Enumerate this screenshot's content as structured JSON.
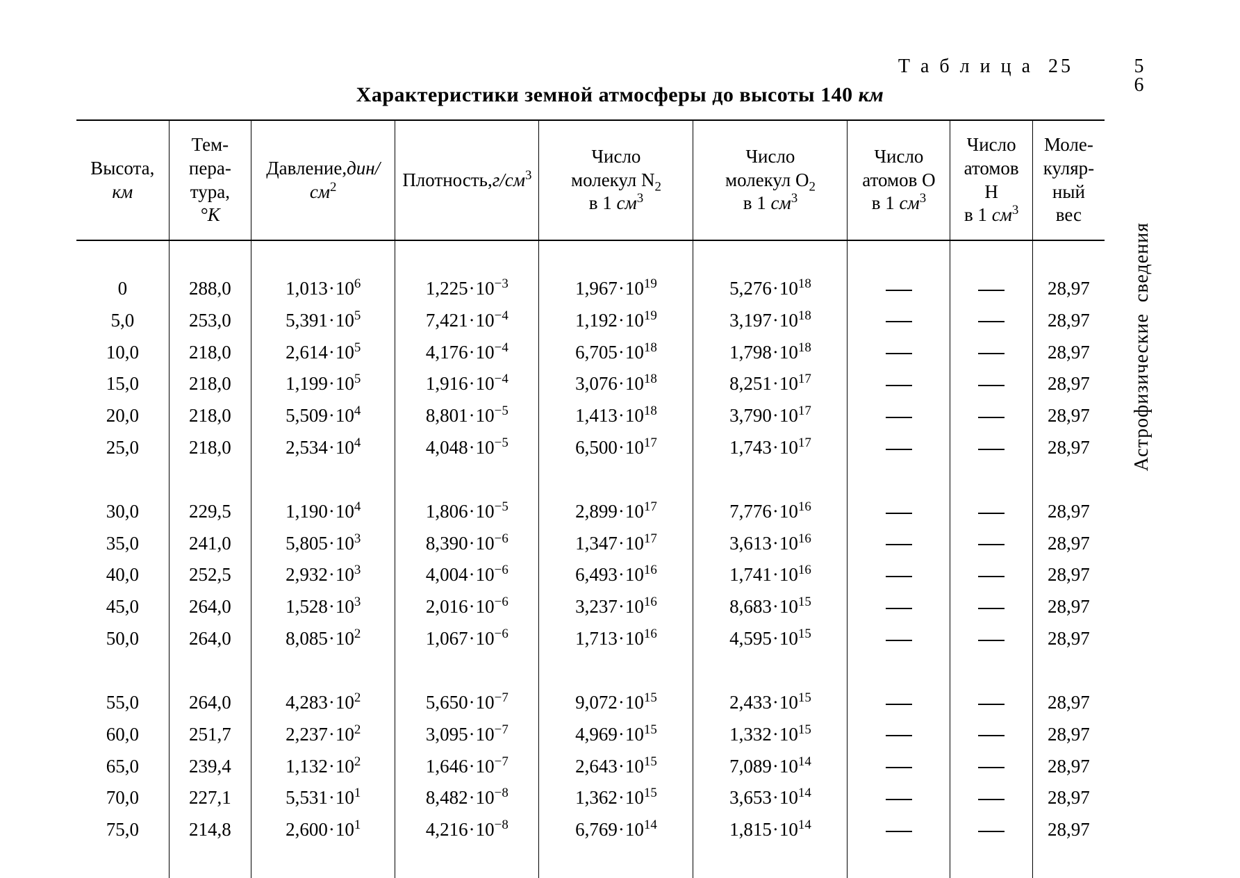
{
  "page_number": "56",
  "table_label": "Т а б л и ц а  25",
  "side_text": "Астрофизические  сведения",
  "title_prefix": "Характеристики земной атмосферы до высоты 140 ",
  "title_unit": "км",
  "columns": [
    {
      "lines": [
        "Высота,"
      ],
      "unit": "км"
    },
    {
      "lines": [
        "Тем-",
        "пера-",
        "тура,"
      ],
      "unit": "°K"
    },
    {
      "lines": [
        "Давление,"
      ],
      "unit_html": "дин/см",
      "unit_sup": "2"
    },
    {
      "lines": [
        "Плотность,"
      ],
      "unit_html": "г/см",
      "unit_sup": "3"
    },
    {
      "lines": [
        "Число",
        "молекул N",
        "в 1 "
      ],
      "sub": "2",
      "unit_html": "см",
      "unit_sup": "3"
    },
    {
      "lines": [
        "Число",
        "молекул O",
        "в 1 "
      ],
      "sub": "2",
      "unit_html": "см",
      "unit_sup": "3"
    },
    {
      "lines": [
        "Число",
        "атомов O",
        "в 1 "
      ],
      "unit_html": "см",
      "unit_sup": "3"
    },
    {
      "lines": [
        "Число",
        "атомов",
        "H",
        "в 1 "
      ],
      "unit_html": "см",
      "unit_sup": "3"
    },
    {
      "lines": [
        "Моле-",
        "куляр-",
        "ный",
        "вес"
      ]
    }
  ],
  "groups": [
    [
      {
        "h": "0",
        "t": "288,0",
        "p": [
          "1,013",
          "6"
        ],
        "d": [
          "1,225",
          "−3"
        ],
        "n2": [
          "1,967",
          "19"
        ],
        "o2": [
          "5,276",
          "18"
        ],
        "ao": null,
        "ah": null,
        "mw": "28,97"
      },
      {
        "h": "5,0",
        "t": "253,0",
        "p": [
          "5,391",
          "5"
        ],
        "d": [
          "7,421",
          "−4"
        ],
        "n2": [
          "1,192",
          "19"
        ],
        "o2": [
          "3,197",
          "18"
        ],
        "ao": null,
        "ah": null,
        "mw": "28,97"
      },
      {
        "h": "10,0",
        "t": "218,0",
        "p": [
          "2,614",
          "5"
        ],
        "d": [
          "4,176",
          "−4"
        ],
        "n2": [
          "6,705",
          "18"
        ],
        "o2": [
          "1,798",
          "18"
        ],
        "ao": null,
        "ah": null,
        "mw": "28,97"
      },
      {
        "h": "15,0",
        "t": "218,0",
        "p": [
          "1,199",
          "5"
        ],
        "d": [
          "1,916",
          "−4"
        ],
        "n2": [
          "3,076",
          "18"
        ],
        "o2": [
          "8,251",
          "17"
        ],
        "ao": null,
        "ah": null,
        "mw": "28,97"
      },
      {
        "h": "20,0",
        "t": "218,0",
        "p": [
          "5,509",
          "4"
        ],
        "d": [
          "8,801",
          "−5"
        ],
        "n2": [
          "1,413",
          "18"
        ],
        "o2": [
          "3,790",
          "17"
        ],
        "ao": null,
        "ah": null,
        "mw": "28,97"
      },
      {
        "h": "25,0",
        "t": "218,0",
        "p": [
          "2,534",
          "4"
        ],
        "d": [
          "4,048",
          "−5"
        ],
        "n2": [
          "6,500",
          "17"
        ],
        "o2": [
          "1,743",
          "17"
        ],
        "ao": null,
        "ah": null,
        "mw": "28,97"
      }
    ],
    [
      {
        "h": "30,0",
        "t": "229,5",
        "p": [
          "1,190",
          "4"
        ],
        "d": [
          "1,806",
          "−5"
        ],
        "n2": [
          "2,899",
          "17"
        ],
        "o2": [
          "7,776",
          "16"
        ],
        "ao": null,
        "ah": null,
        "mw": "28,97"
      },
      {
        "h": "35,0",
        "t": "241,0",
        "p": [
          "5,805",
          "3"
        ],
        "d": [
          "8,390",
          "−6"
        ],
        "n2": [
          "1,347",
          "17"
        ],
        "o2": [
          "3,613",
          "16"
        ],
        "ao": null,
        "ah": null,
        "mw": "28,97"
      },
      {
        "h": "40,0",
        "t": "252,5",
        "p": [
          "2,932",
          "3"
        ],
        "d": [
          "4,004",
          "−6"
        ],
        "n2": [
          "6,493",
          "16"
        ],
        "o2": [
          "1,741",
          "16"
        ],
        "ao": null,
        "ah": null,
        "mw": "28,97"
      },
      {
        "h": "45,0",
        "t": "264,0",
        "p": [
          "1,528",
          "3"
        ],
        "d": [
          "2,016",
          "−6"
        ],
        "n2": [
          "3,237",
          "16"
        ],
        "o2": [
          "8,683",
          "15"
        ],
        "ao": null,
        "ah": null,
        "mw": "28,97"
      },
      {
        "h": "50,0",
        "t": "264,0",
        "p": [
          "8,085",
          "2"
        ],
        "d": [
          "1,067",
          "−6"
        ],
        "n2": [
          "1,713",
          "16"
        ],
        "o2": [
          "4,595",
          "15"
        ],
        "ao": null,
        "ah": null,
        "mw": "28,97"
      }
    ],
    [
      {
        "h": "55,0",
        "t": "264,0",
        "p": [
          "4,283",
          "2"
        ],
        "d": [
          "5,650",
          "−7"
        ],
        "n2": [
          "9,072",
          "15"
        ],
        "o2": [
          "2,433",
          "15"
        ],
        "ao": null,
        "ah": null,
        "mw": "28,97"
      },
      {
        "h": "60,0",
        "t": "251,7",
        "p": [
          "2,237",
          "2"
        ],
        "d": [
          "3,095",
          "−7"
        ],
        "n2": [
          "4,969",
          "15"
        ],
        "o2": [
          "1,332",
          "15"
        ],
        "ao": null,
        "ah": null,
        "mw": "28,97"
      },
      {
        "h": "65,0",
        "t": "239,4",
        "p": [
          "1,132",
          "2"
        ],
        "d": [
          "1,646",
          "−7"
        ],
        "n2": [
          "2,643",
          "15"
        ],
        "o2": [
          "7,089",
          "14"
        ],
        "ao": null,
        "ah": null,
        "mw": "28,97"
      },
      {
        "h": "70,0",
        "t": "227,1",
        "p": [
          "5,531",
          "1"
        ],
        "d": [
          "8,482",
          "−8"
        ],
        "n2": [
          "1,362",
          "15"
        ],
        "o2": [
          "3,653",
          "14"
        ],
        "ao": null,
        "ah": null,
        "mw": "28,97"
      },
      {
        "h": "75,0",
        "t": "214,8",
        "p": [
          "2,600",
          "1"
        ],
        "d": [
          "4,216",
          "−8"
        ],
        "n2": [
          "6,769",
          "14"
        ],
        "o2": [
          "1,815",
          "14"
        ],
        "ao": null,
        "ah": null,
        "mw": "28,97"
      }
    ]
  ],
  "col_widths": [
    "9%",
    "8%",
    "14%",
    "14%",
    "15%",
    "15%",
    "10%",
    "8%",
    "7%"
  ]
}
